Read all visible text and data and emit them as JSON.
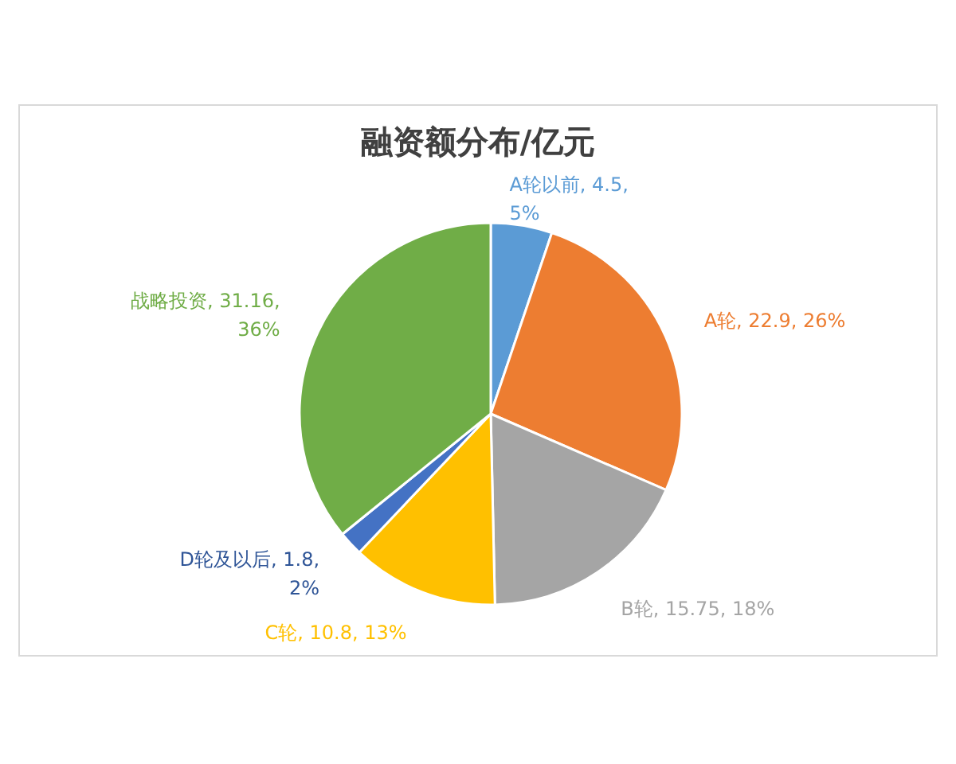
{
  "chart_data": {
    "type": "pie",
    "title": "融资额分布/亿元",
    "categories": [
      "A轮以前",
      "A轮",
      "B轮",
      "C轮",
      "D轮及以后",
      "战略投资"
    ],
    "values": [
      4.5,
      22.9,
      15.75,
      10.8,
      1.8,
      31.16
    ],
    "value_labels": [
      "4.5, 5%",
      "22.9, 26%",
      "15.75, 18%",
      "10.8, 13%",
      "1.8, 2%",
      "31.16, 36%"
    ],
    "colors": [
      "#5b9bd5",
      "#ed7d31",
      "#a5a5a5",
      "#ffc000",
      "#4472c4",
      "#70ad47"
    ]
  }
}
